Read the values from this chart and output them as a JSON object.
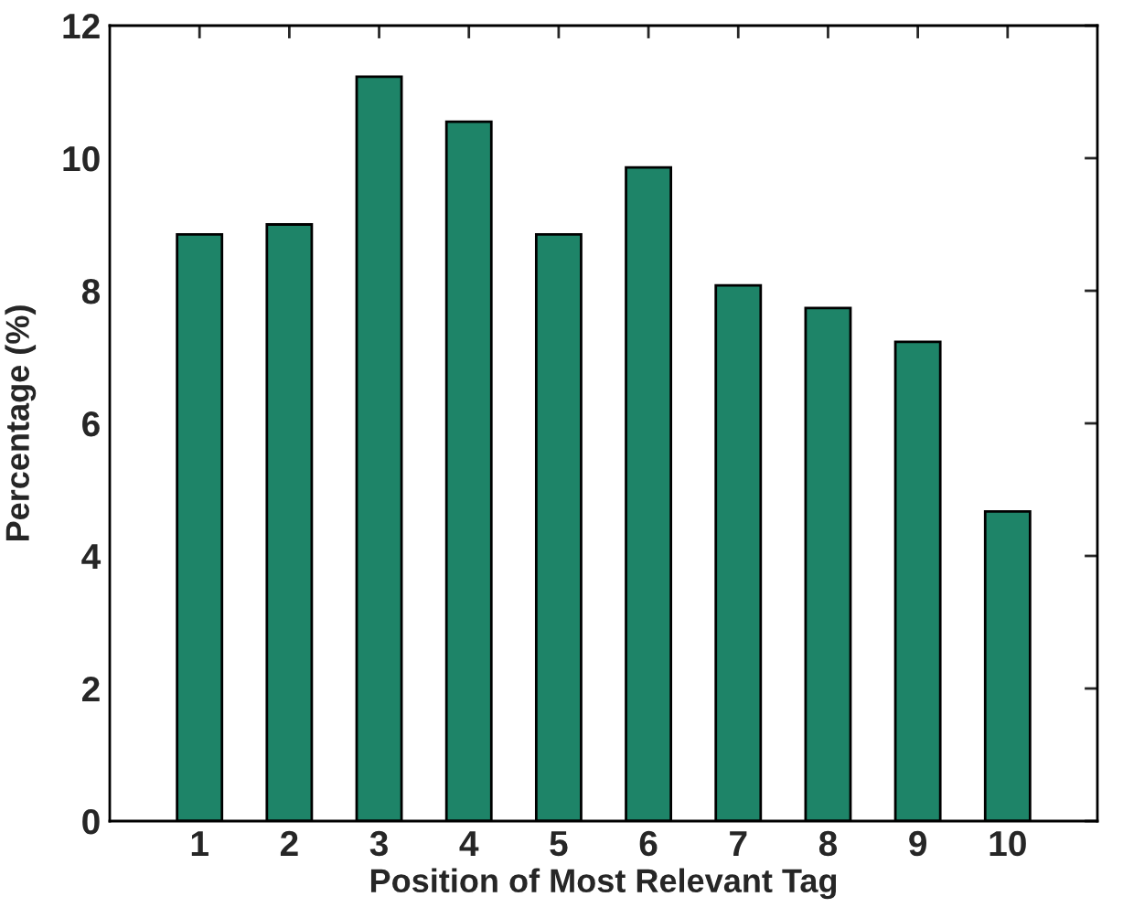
{
  "chart_data": {
    "type": "bar",
    "xlabel": "Position of Most Relevant Tag",
    "ylabel": "Percentage (%)",
    "categories": [
      "1",
      "2",
      "3",
      "4",
      "5",
      "6",
      "7",
      "8",
      "9",
      "10"
    ],
    "values": [
      8.85,
      9.0,
      11.23,
      10.55,
      8.85,
      9.86,
      8.08,
      7.74,
      7.23,
      4.67
    ],
    "color": "#1e8468",
    "ylim": [
      0,
      12
    ],
    "yticks": [
      0,
      2,
      4,
      6,
      8,
      10,
      12
    ],
    "grid": false,
    "legend": false
  }
}
